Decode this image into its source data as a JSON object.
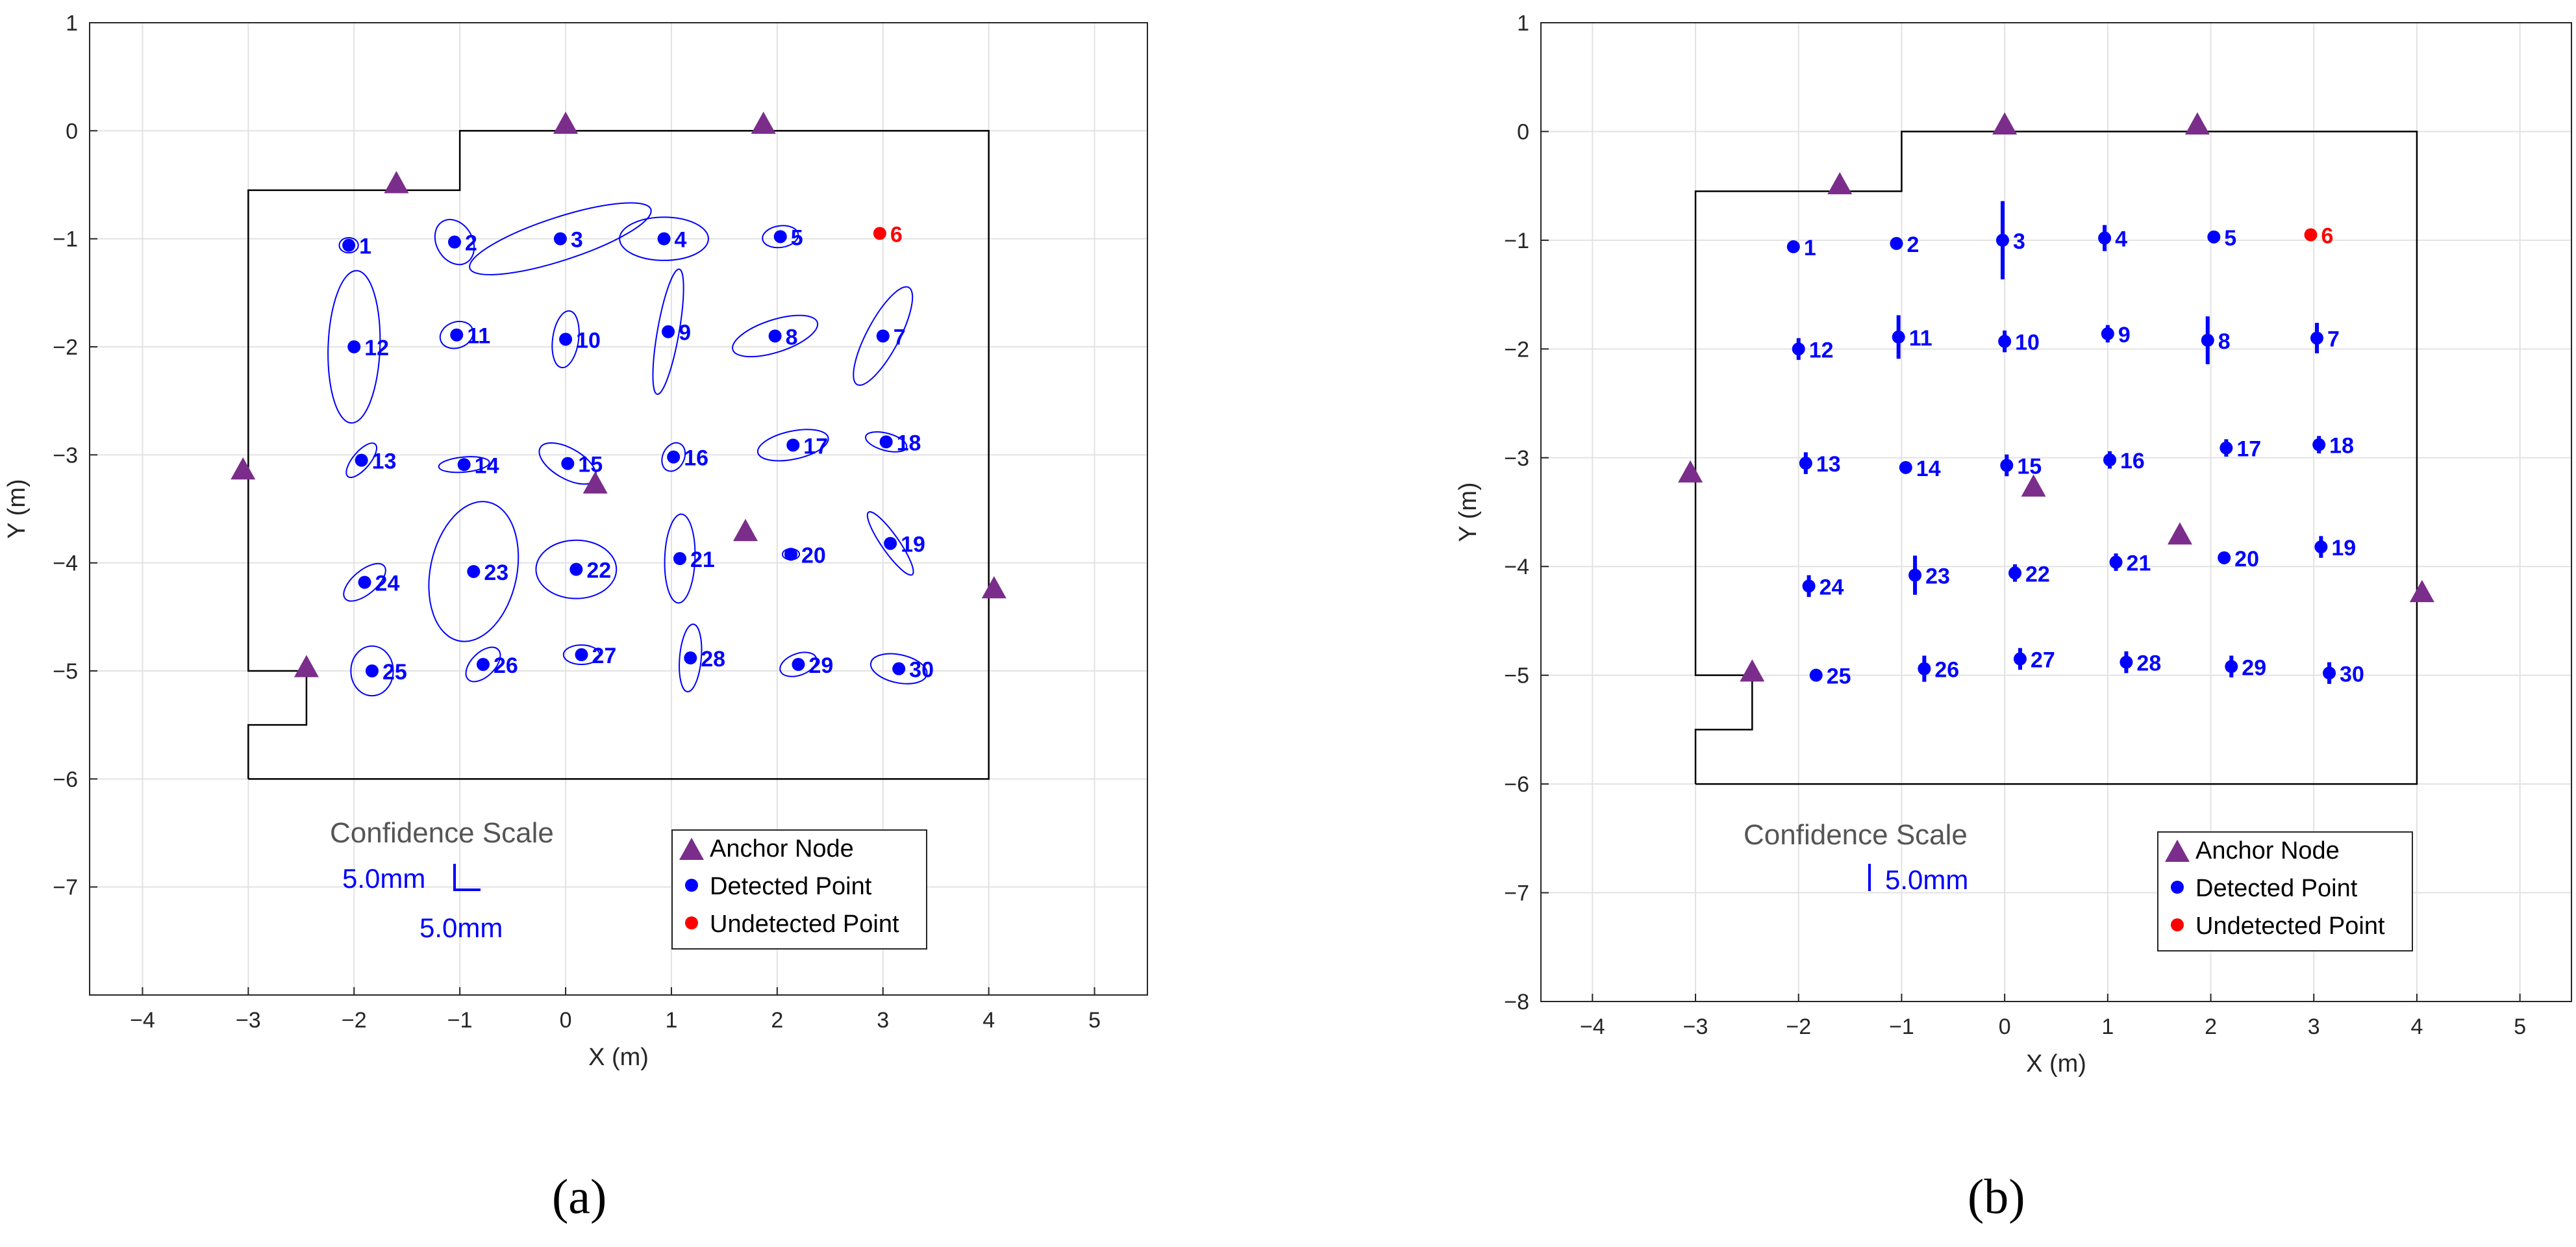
{
  "colors": {
    "anchor": "#7B2D8B",
    "detected": "#0000FF",
    "undetected": "#FF0000",
    "boundary": "#000000",
    "grid": "#E2E2E2",
    "scale_title": "#555555"
  },
  "panels": [
    {
      "label": "(a)"
    },
    {
      "label": "(b)"
    }
  ],
  "chart_data": [
    {
      "type": "scatter",
      "title": "",
      "xlabel": "X (m)",
      "ylabel": "Y (m)",
      "xlim": [
        -4.5,
        5.5
      ],
      "ylim": [
        -8,
        1
      ],
      "xticks": [
        -4,
        -3,
        -2,
        -1,
        0,
        1,
        2,
        3,
        4,
        5
      ],
      "yticks": [
        -7,
        -6,
        -5,
        -4,
        -3,
        -2,
        -1,
        0,
        1
      ],
      "grid": true,
      "boundary": [
        [
          -3,
          -6
        ],
        [
          4,
          -6
        ],
        [
          4,
          0
        ],
        [
          -1,
          0
        ],
        [
          -1,
          -0.55
        ],
        [
          -3,
          -0.55
        ],
        [
          -3,
          -5
        ],
        [
          -2.45,
          -5
        ],
        [
          -2.45,
          -5.5
        ],
        [
          -3,
          -5.5
        ],
        [
          -3,
          -6
        ]
      ],
      "anchors": [
        [
          -3.05,
          -3.15
        ],
        [
          -1.6,
          -0.5
        ],
        [
          0,
          0.05
        ],
        [
          1.87,
          0.05
        ],
        [
          0.28,
          -3.28
        ],
        [
          1.7,
          -3.72
        ],
        [
          4.05,
          -4.25
        ],
        [
          -2.45,
          -4.98
        ]
      ],
      "points": [
        {
          "id": "1",
          "x": -2.05,
          "y": -1.06,
          "ell": {
            "rx": 0.09,
            "ry": 0.07,
            "angle": 0
          }
        },
        {
          "id": "2",
          "x": -1.05,
          "y": -1.03,
          "ell": {
            "rx": 0.17,
            "ry": 0.22,
            "angle": 30
          }
        },
        {
          "id": "3",
          "x": -0.05,
          "y": -1.0,
          "ell": {
            "rx": 0.9,
            "ry": 0.2,
            "angle": 18
          }
        },
        {
          "id": "4",
          "x": 0.93,
          "y": -1.0,
          "ell": {
            "rx": 0.42,
            "ry": 0.2,
            "angle": 0
          }
        },
        {
          "id": "5",
          "x": 2.03,
          "y": -0.98,
          "ell": {
            "rx": 0.17,
            "ry": 0.1,
            "angle": 8
          }
        },
        {
          "id": "6",
          "x": 2.97,
          "y": -0.95,
          "undetected": true
        },
        {
          "id": "7",
          "x": 3.0,
          "y": -1.9,
          "ell": {
            "rx": 0.52,
            "ry": 0.15,
            "angle": 62
          }
        },
        {
          "id": "8",
          "x": 1.98,
          "y": -1.9,
          "ell": {
            "rx": 0.42,
            "ry": 0.15,
            "angle": 18
          }
        },
        {
          "id": "9",
          "x": 0.97,
          "y": -1.86,
          "ell": {
            "rx": 0.6,
            "ry": 0.1,
            "angle": 80
          }
        },
        {
          "id": "10",
          "x": 0.0,
          "y": -1.93,
          "ell": {
            "rx": 0.27,
            "ry": 0.12,
            "angle": 82
          }
        },
        {
          "id": "11",
          "x": -1.03,
          "y": -1.89,
          "ell": {
            "rx": 0.16,
            "ry": 0.12,
            "angle": 20
          }
        },
        {
          "id": "12",
          "x": -2.0,
          "y": -2.0,
          "ell": {
            "rx": 0.72,
            "ry": 0.24,
            "angle": 88
          }
        },
        {
          "id": "13",
          "x": -1.93,
          "y": -3.05,
          "ell": {
            "rx": 0.2,
            "ry": 0.08,
            "angle": 50
          }
        },
        {
          "id": "14",
          "x": -0.96,
          "y": -3.09,
          "ell": {
            "rx": 0.24,
            "ry": 0.07,
            "angle": 5
          }
        },
        {
          "id": "15",
          "x": 0.02,
          "y": -3.08,
          "ell": {
            "rx": 0.3,
            "ry": 0.14,
            "angle": -30
          }
        },
        {
          "id": "16",
          "x": 1.02,
          "y": -3.02,
          "ell": {
            "rx": 0.14,
            "ry": 0.1,
            "angle": 65
          }
        },
        {
          "id": "17",
          "x": 2.15,
          "y": -2.91,
          "ell": {
            "rx": 0.34,
            "ry": 0.13,
            "angle": 12
          }
        },
        {
          "id": "18",
          "x": 3.03,
          "y": -2.88,
          "ell": {
            "rx": 0.2,
            "ry": 0.08,
            "angle": -15
          }
        },
        {
          "id": "19",
          "x": 3.07,
          "y": -3.82,
          "ell": {
            "rx": 0.36,
            "ry": 0.08,
            "angle": -55
          }
        },
        {
          "id": "20",
          "x": 2.13,
          "y": -3.92,
          "ell": {
            "rx": 0.08,
            "ry": 0.05,
            "angle": 0
          }
        },
        {
          "id": "21",
          "x": 1.08,
          "y": -3.96,
          "ell": {
            "rx": 0.42,
            "ry": 0.14,
            "angle": 88
          }
        },
        {
          "id": "22",
          "x": 0.1,
          "y": -4.06,
          "ell": {
            "rx": 0.38,
            "ry": 0.27,
            "angle": 0
          }
        },
        {
          "id": "23",
          "x": -0.87,
          "y": -4.08,
          "ell": {
            "rx": 0.67,
            "ry": 0.4,
            "angle": 78
          }
        },
        {
          "id": "24",
          "x": -1.9,
          "y": -4.18,
          "ell": {
            "rx": 0.24,
            "ry": 0.11,
            "angle": 40
          }
        },
        {
          "id": "25",
          "x": -1.83,
          "y": -5.0,
          "ell": {
            "rx": 0.2,
            "ry": 0.23,
            "angle": 0
          }
        },
        {
          "id": "26",
          "x": -0.78,
          "y": -4.94,
          "ell": {
            "rx": 0.2,
            "ry": 0.11,
            "angle": 45
          }
        },
        {
          "id": "27",
          "x": 0.15,
          "y": -4.85,
          "ell": {
            "rx": 0.17,
            "ry": 0.09,
            "angle": 0
          }
        },
        {
          "id": "28",
          "x": 1.18,
          "y": -4.88,
          "ell": {
            "rx": 0.32,
            "ry": 0.1,
            "angle": 85
          }
        },
        {
          "id": "29",
          "x": 2.2,
          "y": -4.94,
          "ell": {
            "rx": 0.18,
            "ry": 0.1,
            "angle": 20
          }
        },
        {
          "id": "30",
          "x": 3.15,
          "y": -4.98,
          "ell": {
            "rx": 0.27,
            "ry": 0.13,
            "angle": -12
          }
        }
      ],
      "scale": {
        "title": "Confidence Scale",
        "label1": "5.0mm",
        "label2": "5.0mm"
      },
      "legend": {
        "placement": "bottom-right",
        "entries": [
          "Anchor Node",
          "Detected Point",
          "Undetected Point"
        ]
      }
    },
    {
      "type": "scatter",
      "title": "",
      "xlabel": "X (m)",
      "ylabel": "Y (m)",
      "xlim": [
        -4.5,
        5.5
      ],
      "ylim": [
        -8,
        1
      ],
      "xticks": [
        -4,
        -3,
        -2,
        -1,
        0,
        1,
        2,
        3,
        4,
        5
      ],
      "yticks": [
        -8,
        -7,
        -6,
        -5,
        -4,
        -3,
        -2,
        -1,
        0,
        1
      ],
      "grid": true,
      "boundary": [
        [
          -3,
          -6
        ],
        [
          4,
          -6
        ],
        [
          4,
          0
        ],
        [
          -1,
          0
        ],
        [
          -1,
          -0.55
        ],
        [
          -3,
          -0.55
        ],
        [
          -3,
          -5
        ],
        [
          -2.45,
          -5
        ],
        [
          -2.45,
          -5.5
        ],
        [
          -3,
          -5.5
        ],
        [
          -3,
          -6
        ]
      ],
      "anchors": [
        [
          -3.05,
          -3.15
        ],
        [
          -1.6,
          -0.5
        ],
        [
          0,
          0.05
        ],
        [
          1.87,
          0.05
        ],
        [
          0.28,
          -3.28
        ],
        [
          1.7,
          -3.72
        ],
        [
          4.05,
          -4.25
        ],
        [
          -2.45,
          -4.98
        ]
      ],
      "points": [
        {
          "id": "1",
          "x": -2.05,
          "y": -1.06,
          "err": 0.0
        },
        {
          "id": "2",
          "x": -1.05,
          "y": -1.03,
          "err": 0.0
        },
        {
          "id": "3",
          "x": -0.02,
          "y": -1.0,
          "err": 0.36
        },
        {
          "id": "4",
          "x": 0.97,
          "y": -0.98,
          "err": 0.12
        },
        {
          "id": "5",
          "x": 2.03,
          "y": -0.97,
          "err": 0.05
        },
        {
          "id": "6",
          "x": 2.97,
          "y": -0.95,
          "undetected": true
        },
        {
          "id": "7",
          "x": 3.03,
          "y": -1.9,
          "err": 0.14
        },
        {
          "id": "8",
          "x": 1.97,
          "y": -1.92,
          "err": 0.22
        },
        {
          "id": "9",
          "x": 1.0,
          "y": -1.86,
          "err": 0.08
        },
        {
          "id": "10",
          "x": 0.0,
          "y": -1.93,
          "err": 0.1
        },
        {
          "id": "11",
          "x": -1.03,
          "y": -1.89,
          "err": 0.2
        },
        {
          "id": "12",
          "x": -2.0,
          "y": -2.0,
          "err": 0.1
        },
        {
          "id": "13",
          "x": -1.93,
          "y": -3.05,
          "err": 0.1
        },
        {
          "id": "14",
          "x": -0.96,
          "y": -3.09,
          "err": 0.05
        },
        {
          "id": "15",
          "x": 0.02,
          "y": -3.07,
          "err": 0.1
        },
        {
          "id": "16",
          "x": 1.02,
          "y": -3.02,
          "err": 0.08
        },
        {
          "id": "17",
          "x": 2.15,
          "y": -2.91,
          "err": 0.08
        },
        {
          "id": "18",
          "x": 3.05,
          "y": -2.88,
          "err": 0.08
        },
        {
          "id": "19",
          "x": 3.07,
          "y": -3.82,
          "err": 0.1
        },
        {
          "id": "20",
          "x": 2.13,
          "y": -3.92,
          "err": 0.0
        },
        {
          "id": "21",
          "x": 1.08,
          "y": -3.96,
          "err": 0.08
        },
        {
          "id": "22",
          "x": 0.1,
          "y": -4.06,
          "err": 0.08
        },
        {
          "id": "23",
          "x": -0.87,
          "y": -4.08,
          "err": 0.18
        },
        {
          "id": "24",
          "x": -1.9,
          "y": -4.18,
          "err": 0.1
        },
        {
          "id": "25",
          "x": -1.83,
          "y": -5.0,
          "err": 0.05
        },
        {
          "id": "26",
          "x": -0.78,
          "y": -4.94,
          "err": 0.12
        },
        {
          "id": "27",
          "x": 0.15,
          "y": -4.85,
          "err": 0.1
        },
        {
          "id": "28",
          "x": 1.18,
          "y": -4.88,
          "err": 0.1
        },
        {
          "id": "29",
          "x": 2.2,
          "y": -4.92,
          "err": 0.1
        },
        {
          "id": "30",
          "x": 3.15,
          "y": -4.98,
          "err": 0.1
        }
      ],
      "scale": {
        "title": "Confidence Scale",
        "label1": "5.0mm"
      },
      "legend": {
        "placement": "bottom-right",
        "entries": [
          "Anchor Node",
          "Detected Point",
          "Undetected Point"
        ]
      }
    }
  ]
}
